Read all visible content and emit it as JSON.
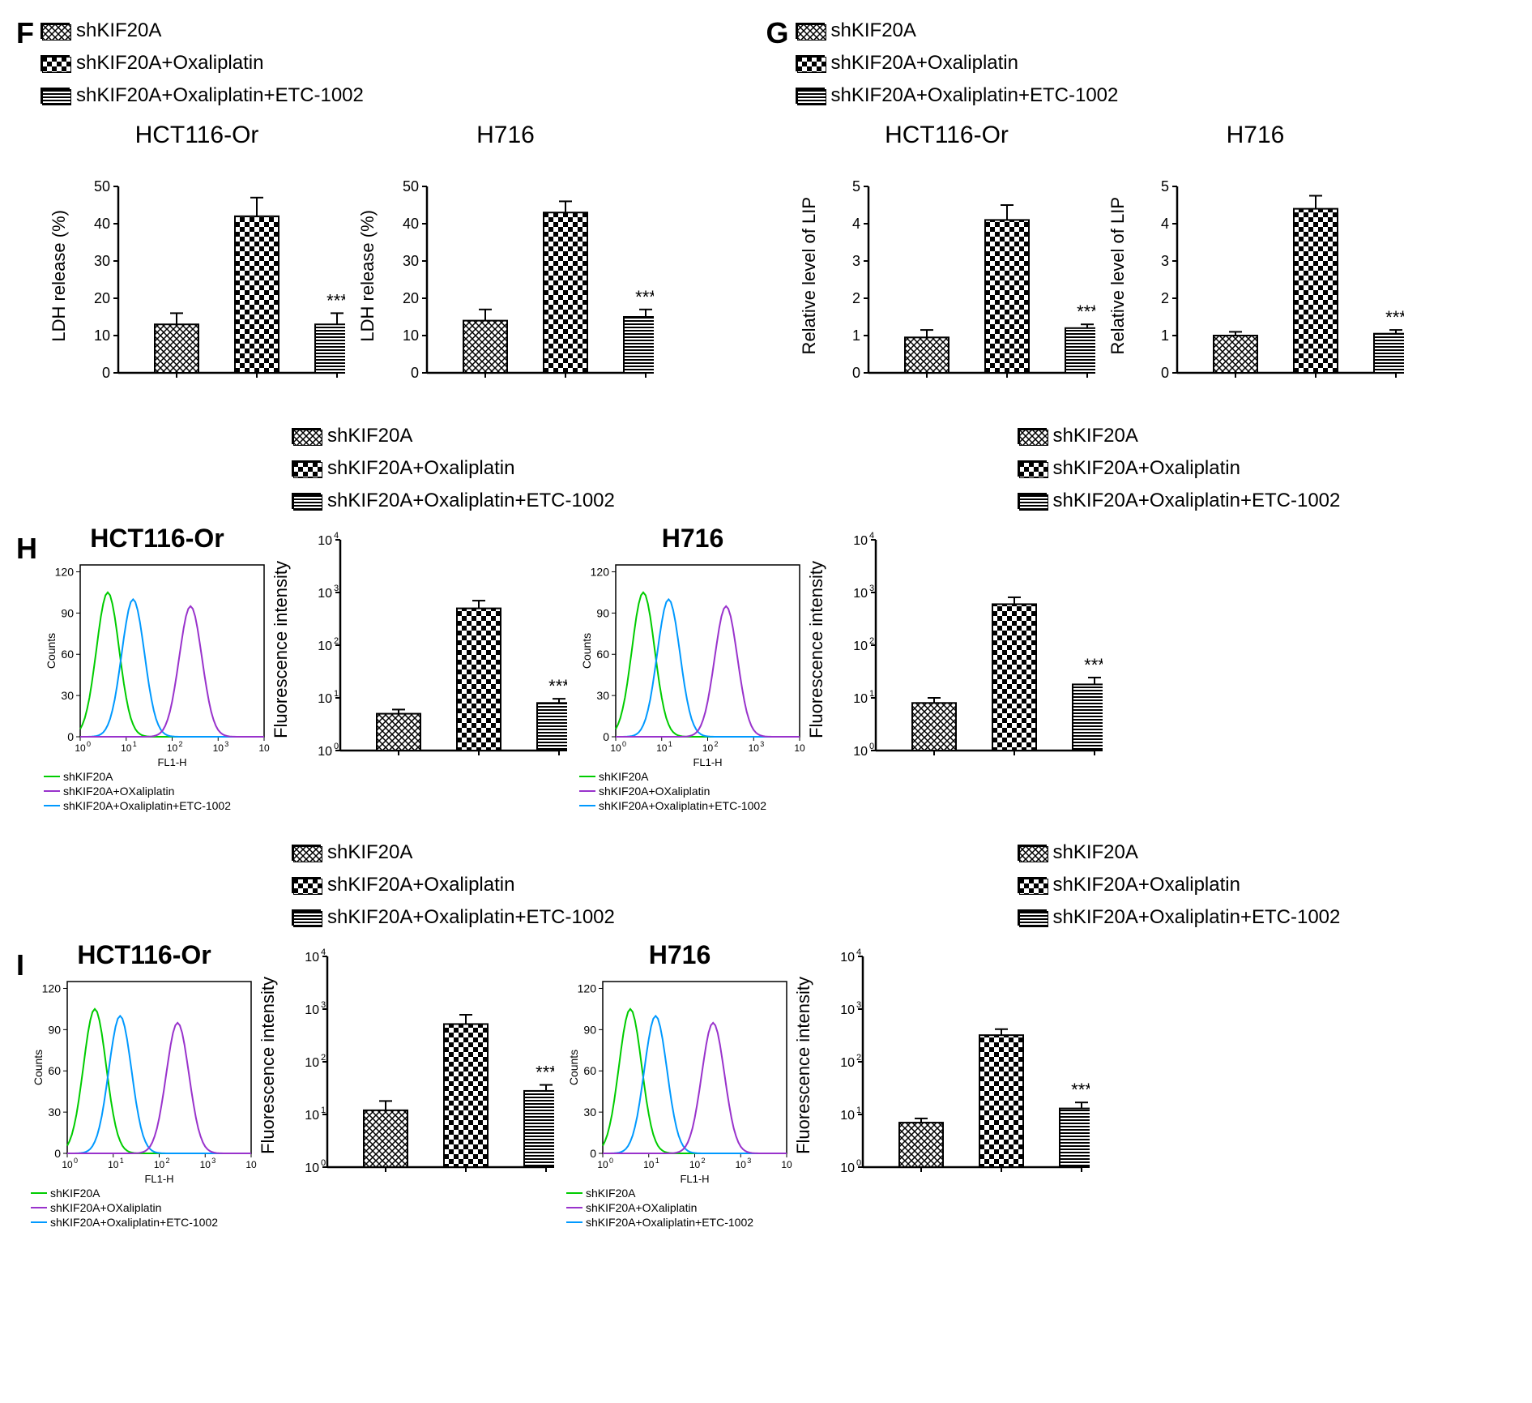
{
  "legend": {
    "items": [
      "shKIF20A",
      "shKIF20A+Oxaliplatin",
      "shKIF20A+Oxaliplatin+ETC-1002"
    ]
  },
  "flow_legend": {
    "items": [
      "shKIF20A",
      "shKIF20A+OXaliplatin",
      "shKIF20A+Oxaliplatin+ETC-1002"
    ],
    "colors": [
      "#00cc00",
      "#9933cc",
      "#0099ff"
    ]
  },
  "panelF": {
    "label": "F",
    "charts": [
      {
        "title": "HCT116-Or",
        "ylabel": "LDH release (%)",
        "ylim": [
          0,
          50
        ],
        "ytick": 10,
        "values": [
          13,
          42,
          13
        ],
        "errors": [
          3,
          5,
          3
        ],
        "sig": "***"
      },
      {
        "title": "H716",
        "ylabel": "LDH release (%)",
        "ylim": [
          0,
          50
        ],
        "ytick": 10,
        "values": [
          14,
          43,
          15
        ],
        "errors": [
          3,
          3,
          2
        ],
        "sig": "***"
      }
    ]
  },
  "panelG": {
    "label": "G",
    "charts": [
      {
        "title": "HCT116-Or",
        "ylabel": "Relative level of LIP",
        "ylim": [
          0,
          5
        ],
        "ytick": 1,
        "values": [
          0.95,
          4.1,
          1.2
        ],
        "errors": [
          0.2,
          0.4,
          0.1
        ],
        "sig": "***"
      },
      {
        "title": "H716",
        "ylabel": "Relative level of  LIP",
        "ylim": [
          0,
          5
        ],
        "ytick": 1,
        "values": [
          1.0,
          4.4,
          1.05
        ],
        "errors": [
          0.1,
          0.35,
          0.1
        ],
        "sig": "***"
      }
    ]
  },
  "panelH": {
    "label": "H",
    "ylabel": "Fluorescence intensity",
    "charts": [
      {
        "title": "HCT116-Or",
        "values": [
          5,
          500,
          8
        ],
        "errors_ratio": [
          1.2,
          1.4,
          1.2
        ],
        "sig": "***"
      },
      {
        "title": "H716",
        "values": [
          8,
          600,
          18
        ],
        "errors_ratio": [
          1.25,
          1.35,
          1.35
        ],
        "sig": "***"
      }
    ]
  },
  "panelI": {
    "label": "I",
    "ylabel": "Fluorescence intensity",
    "charts": [
      {
        "title": "HCT116-Or",
        "values": [
          12,
          520,
          28
        ],
        "errors_ratio": [
          1.5,
          1.5,
          1.3
        ],
        "sig": "***"
      },
      {
        "title": "H716",
        "values": [
          7,
          320,
          13
        ],
        "errors_ratio": [
          1.2,
          1.3,
          1.3
        ],
        "sig": "***"
      }
    ]
  },
  "flow_xlabel": "FL1-H",
  "flow_ylabel": "Counts",
  "patterns": [
    "crosshatch",
    "checker",
    "hstripes"
  ]
}
